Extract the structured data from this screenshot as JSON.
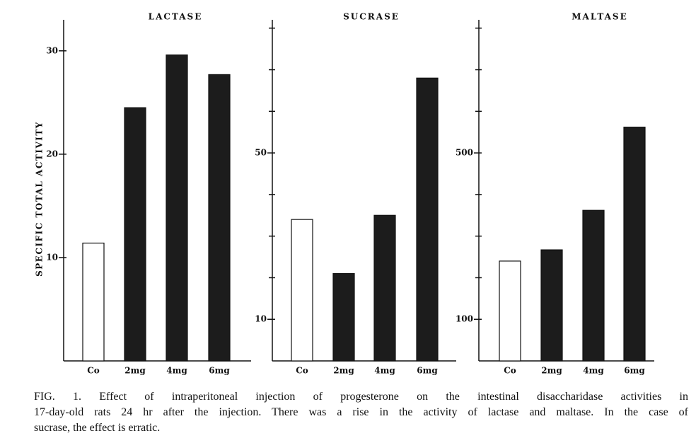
{
  "chart_data": [
    {
      "type": "bar",
      "title": "LACTASE",
      "ylabel": "SPECIFIC TOTAL ACTIVITY",
      "categories": [
        "Co",
        "2mg",
        "4mg",
        "6mg"
      ],
      "values": [
        11.4,
        24.5,
        29.6,
        27.7
      ],
      "colors": [
        "#ffffff",
        "#1c1c1c",
        "#1c1c1c",
        "#1c1c1c"
      ],
      "ylim": [
        0,
        33
      ],
      "yticks": [
        10,
        20,
        30
      ]
    },
    {
      "type": "bar",
      "title": "SUCRASE",
      "categories": [
        "Co",
        "2mg",
        "4mg",
        "6mg"
      ],
      "values": [
        34,
        21,
        35,
        68
      ],
      "colors": [
        "#ffffff",
        "#1c1c1c",
        "#1c1c1c",
        "#1c1c1c"
      ],
      "ylim": [
        0,
        82
      ],
      "yticks": [
        10,
        50
      ],
      "minor_yticks": [
        20,
        30,
        40,
        60,
        70,
        80
      ]
    },
    {
      "type": "bar",
      "title": "MALTASE",
      "categories": [
        "Co",
        "2mg",
        "4mg",
        "6mg"
      ],
      "values": [
        240,
        267,
        362,
        562
      ],
      "colors": [
        "#ffffff",
        "#1c1c1c",
        "#1c1c1c",
        "#1c1c1c"
      ],
      "ylim": [
        0,
        820
      ],
      "yticks": [
        100,
        500
      ],
      "minor_yticks": [
        200,
        300,
        400,
        600,
        700,
        800
      ]
    }
  ],
  "caption_lines": [
    "FIG. 1. Effect of intraperitoneal injection of progesterone on the intestinal disaccharidase activities in",
    "17-day-old rats 24 hr after the injection. There was a rise in the activity of lactase and maltase. In the case of",
    "sucrase, the effect is erratic."
  ]
}
